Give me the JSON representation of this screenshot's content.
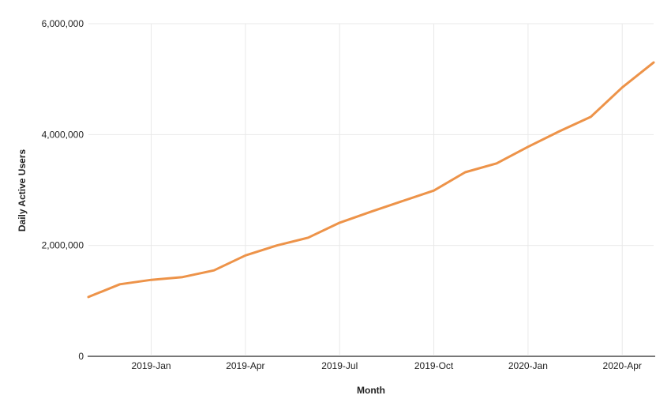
{
  "chart_data": {
    "type": "line",
    "title": "",
    "xlabel": "Month",
    "ylabel": "Daily Active Users",
    "x": [
      "2018-Nov",
      "2018-Dec",
      "2019-Jan",
      "2019-Feb",
      "2019-Mar",
      "2019-Apr",
      "2019-May",
      "2019-Jun",
      "2019-Jul",
      "2019-Aug",
      "2019-Sep",
      "2019-Oct",
      "2019-Nov",
      "2019-Dec",
      "2020-Jan",
      "2020-Feb",
      "2020-Mar",
      "2020-Apr",
      "2020-May"
    ],
    "series": [
      {
        "name": "Daily Active Users",
        "values": [
          1070000,
          1300000,
          1380000,
          1430000,
          1550000,
          1820000,
          2000000,
          2140000,
          2410000,
          2610000,
          2800000,
          2990000,
          3320000,
          3480000,
          3780000,
          4060000,
          4320000,
          4850000,
          5300000
        ],
        "color": "#ED9349"
      }
    ],
    "x_tick_labels": [
      "2019-Jan",
      "2019-Apr",
      "2019-Jul",
      "2019-Oct",
      "2020-Jan",
      "2020-Apr"
    ],
    "y_ticks": [
      0,
      2000000,
      4000000,
      6000000
    ],
    "y_tick_labels": [
      "0",
      "2,000,000",
      "4,000,000",
      "6,000,000"
    ],
    "ylim": [
      0,
      6000000
    ],
    "grid": true,
    "legend": "none",
    "colors": {
      "grid": "#e9e9e9",
      "axis": "#787878",
      "text": "#1f1f1f"
    }
  }
}
